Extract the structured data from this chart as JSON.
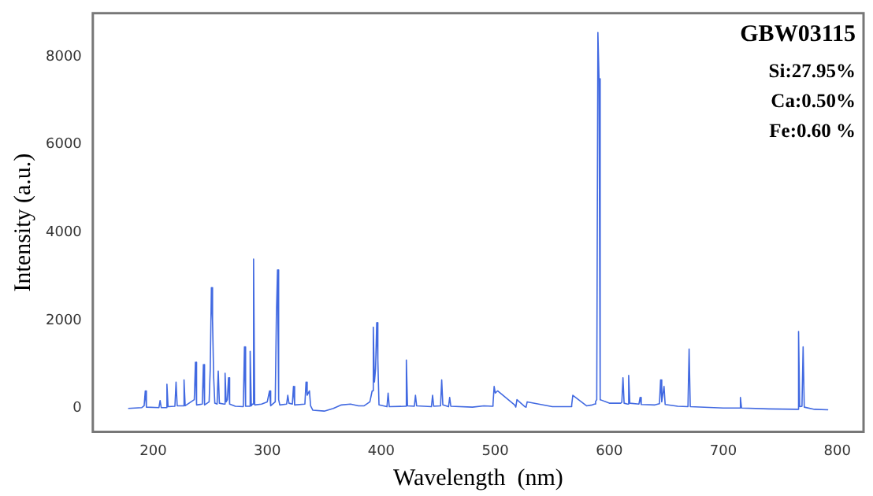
{
  "chart_data": {
    "type": "line",
    "xlabel": "Wavelength  (nm)",
    "ylabel": "Intensity (a.u.)",
    "annotations": [
      "GBW03115",
      "Si:27.95%",
      "Ca:0.50%",
      "Fe:0.60 %"
    ],
    "xlim": [
      147,
      823
    ],
    "xticks": [
      200,
      300,
      400,
      500,
      600,
      700,
      800
    ],
    "ylim": [
      -530,
      8990
    ],
    "yticks": [
      0,
      2000,
      4000,
      6000,
      8000
    ],
    "grid": false,
    "legend": false,
    "marker": "none",
    "line_style": "solid",
    "series": [
      {
        "color": "#4169e1",
        "x": [
          178,
          190,
          192,
          193,
          194,
          205,
          206,
          207,
          211,
          212,
          213,
          219,
          220,
          221,
          226,
          227,
          228,
          236,
          237,
          238,
          243,
          244,
          245,
          249,
          250,
          251,
          252,
          253,
          254,
          256,
          257,
          258,
          262,
          263,
          264,
          265,
          266,
          267,
          272,
          279,
          280,
          281,
          284,
          285,
          286,
          287,
          288,
          289,
          295,
          300,
          302,
          303,
          307,
          308,
          309,
          310,
          311,
          317,
          318,
          319,
          322,
          323,
          324,
          333,
          334,
          335,
          337,
          338,
          340,
          350,
          358,
          365,
          373,
          380,
          385,
          390,
          392,
          393,
          394,
          395,
          396,
          397,
          398,
          405,
          406,
          407,
          421,
          422,
          423,
          429,
          430,
          431,
          444,
          445,
          446,
          452,
          453,
          454,
          459,
          460,
          461,
          480,
          490,
          497,
          498,
          499,
          500,
          502,
          517,
          518,
          519,
          526,
          527,
          528,
          550,
          566,
          567,
          568,
          580,
          585,
          587,
          588,
          589,
          590,
          591,
          592,
          600,
          610,
          611,
          612,
          613,
          616,
          617,
          618,
          626,
          627,
          628,
          640,
          644,
          645,
          646,
          648,
          649,
          660,
          669,
          670,
          671,
          700,
          714,
          715,
          716,
          740,
          765,
          766,
          767,
          769,
          770,
          771,
          780,
          792
        ],
        "values": [
          0,
          20,
          60,
          400,
          30,
          20,
          180,
          20,
          20,
          550,
          40,
          50,
          600,
          60,
          60,
          650,
          60,
          200,
          1050,
          80,
          100,
          1000,
          80,
          150,
          900,
          2750,
          2000,
          700,
          120,
          100,
          850,
          120,
          100,
          800,
          150,
          200,
          700,
          100,
          50,
          40,
          1400,
          50,
          50,
          1300,
          60,
          100,
          3400,
          80,
          100,
          150,
          400,
          60,
          150,
          2100,
          3150,
          200,
          80,
          100,
          300,
          120,
          100,
          500,
          80,
          100,
          600,
          300,
          400,
          60,
          -40,
          -60,
          0,
          80,
          100,
          60,
          60,
          150,
          400,
          1850,
          600,
          900,
          1950,
          1100,
          80,
          40,
          350,
          40,
          50,
          1100,
          60,
          50,
          300,
          60,
          40,
          300,
          50,
          60,
          650,
          80,
          40,
          250,
          50,
          30,
          60,
          50,
          100,
          500,
          350,
          400,
          80,
          30,
          200,
          40,
          30,
          150,
          40,
          40,
          80,
          300,
          60,
          80,
          100,
          160,
          200,
          8550,
          7500,
          200,
          120,
          120,
          140,
          700,
          120,
          100,
          750,
          120,
          100,
          250,
          90,
          80,
          110,
          650,
          150,
          500,
          90,
          50,
          40,
          1350,
          40,
          10,
          10,
          250,
          10,
          -10,
          -20,
          1750,
          40,
          50,
          1400,
          30,
          -20,
          -30
        ]
      }
    ]
  }
}
